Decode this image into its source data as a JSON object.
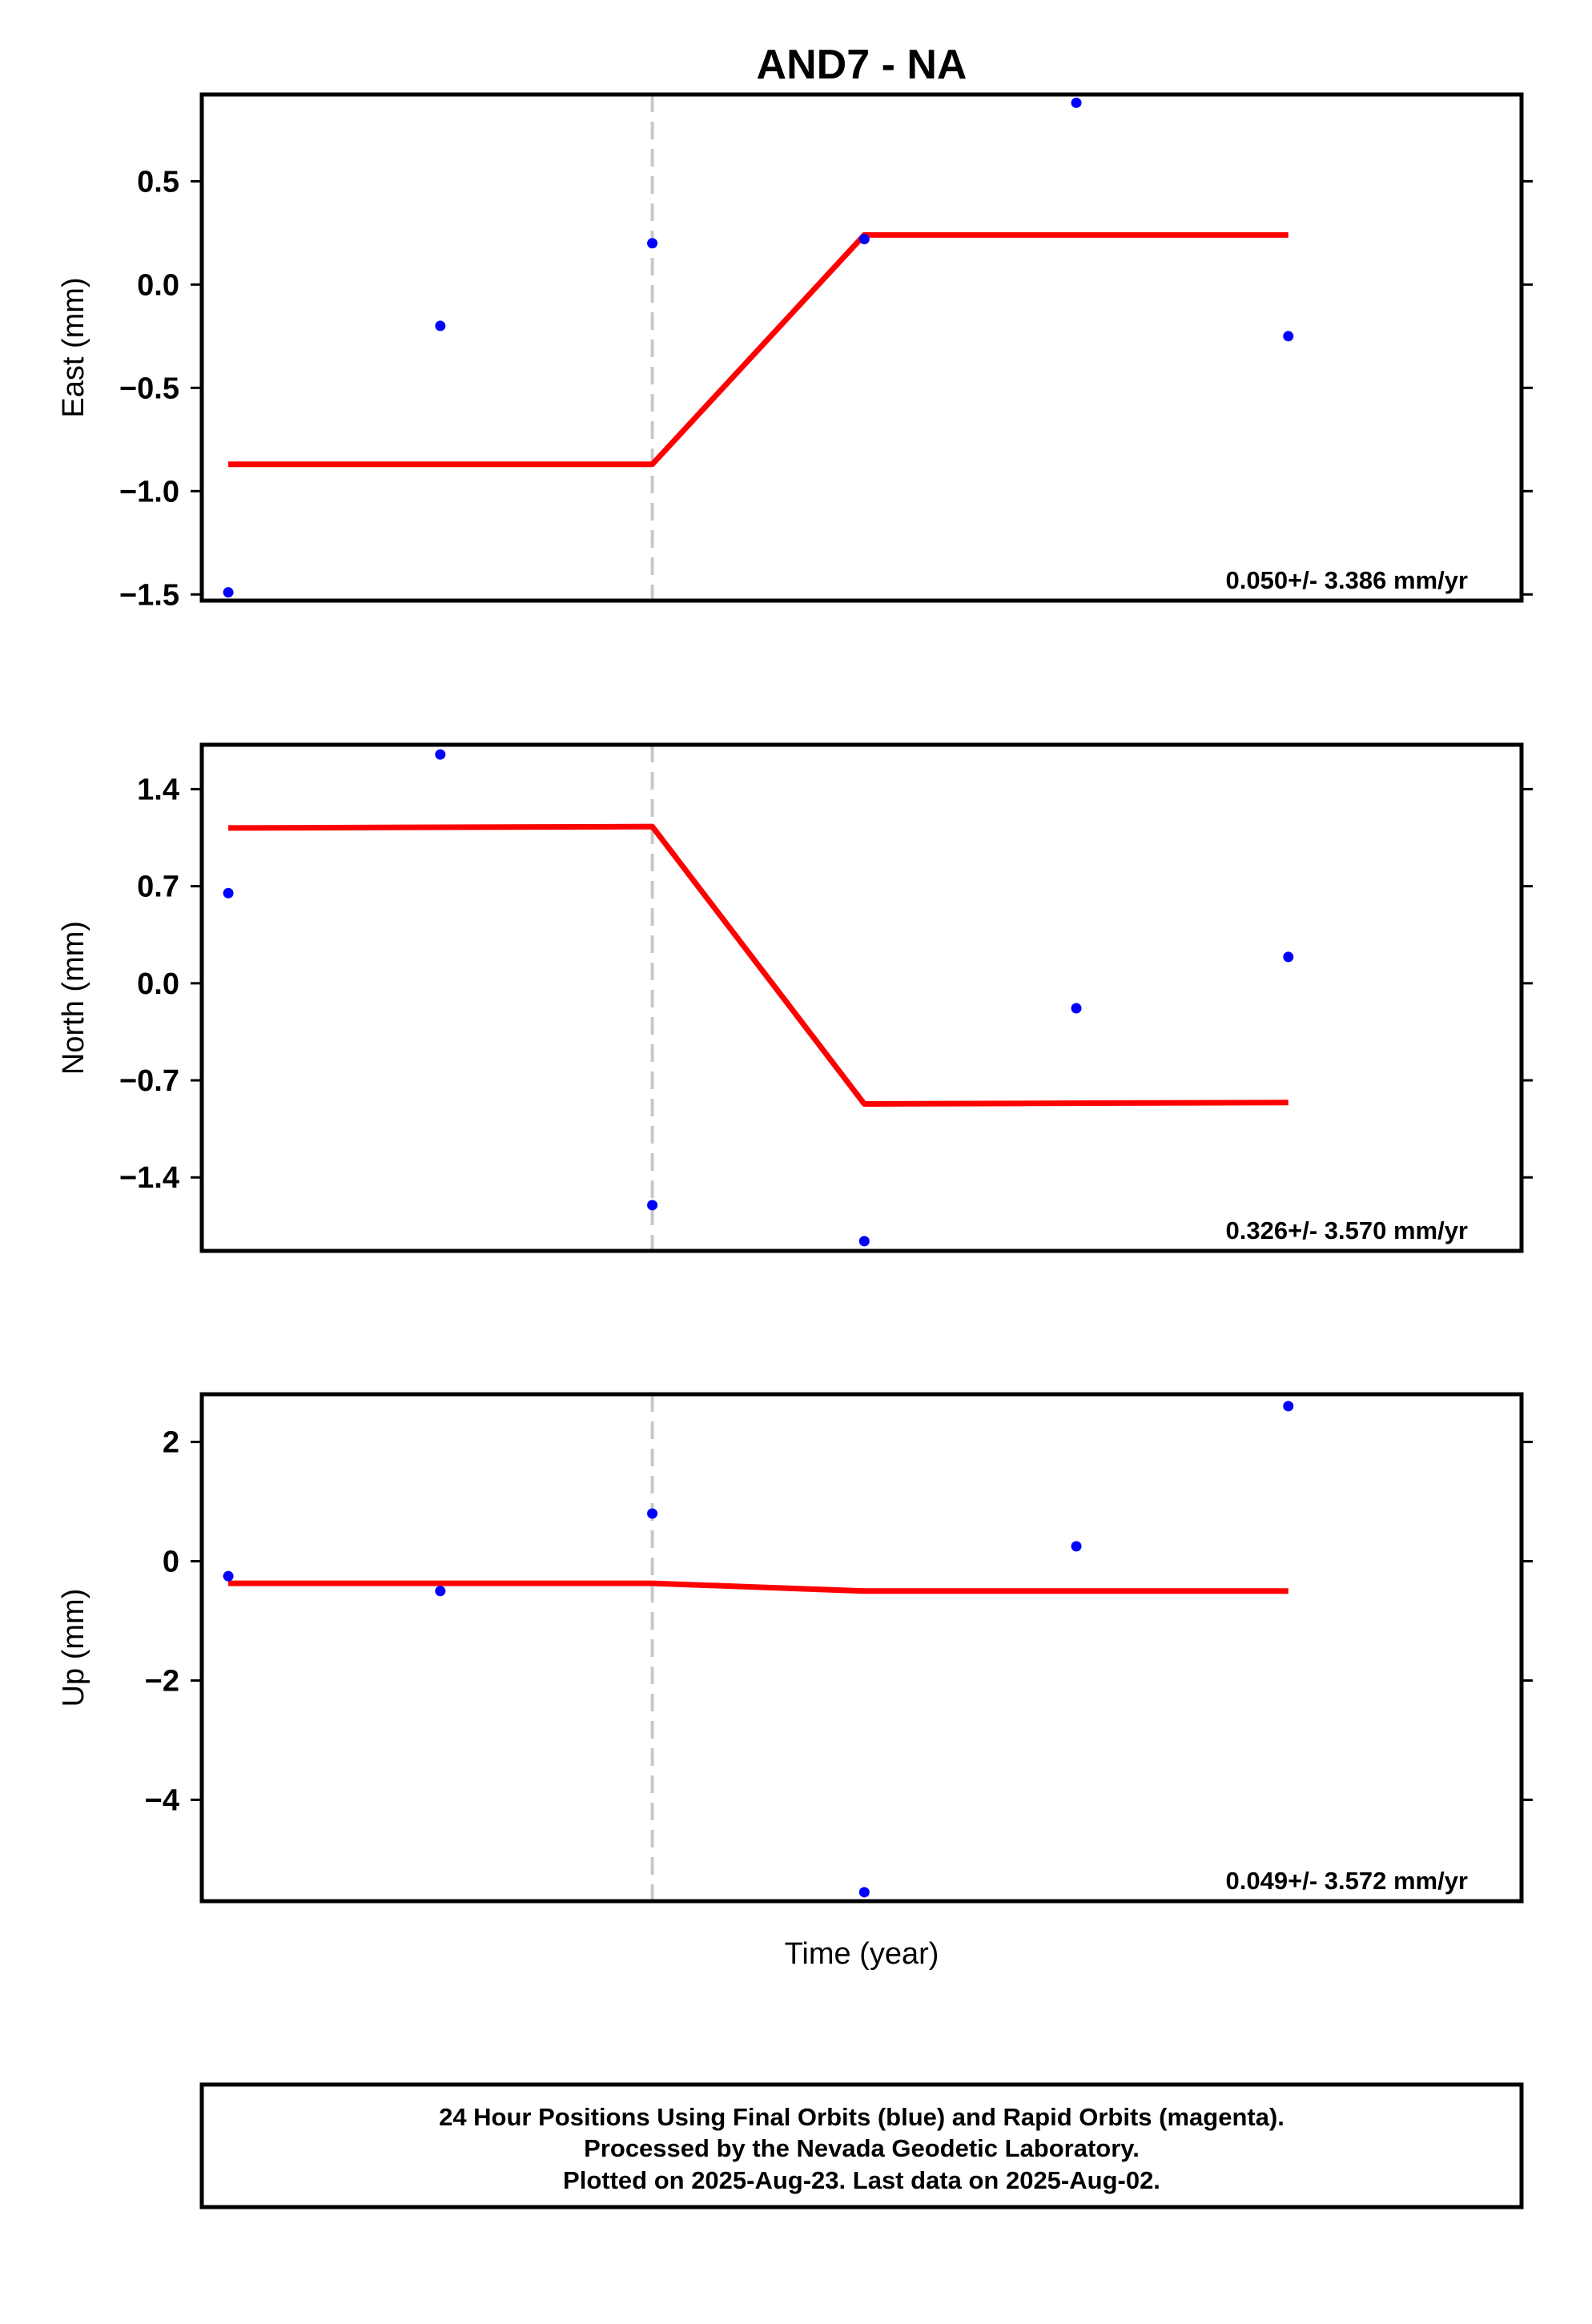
{
  "title": "AND7 - NA",
  "xlabel": "Time (year)",
  "footer": [
    "24 Hour Positions Using Final Orbits (blue) and Rapid Orbits (magenta).",
    "Processed by the Nevada Geodetic Laboratory.",
    "Plotted on 2025-Aug-23. Last data on 2025-Aug-02."
  ],
  "colors": {
    "points": "#0000ff",
    "model": "#ff0000",
    "break_line": "#c8c8c8"
  },
  "chart_data": [
    {
      "type": "scatter",
      "title": "AND7 - NA",
      "ylabel": "East (mm)",
      "rate": "0.050+/- 3.386 mm/yr",
      "ylim": [
        -1.53,
        0.92
      ],
      "yticks": [
        0.5,
        0.0,
        -0.5,
        -1.0,
        -1.5
      ],
      "ytick_labels": [
        "0.5",
        "0.0",
        "−0.5",
        "−1.0",
        "−1.5"
      ],
      "series": [
        {
          "x": [
            1,
            2,
            3,
            4,
            5,
            6
          ],
          "values": [
            -1.49,
            -0.2,
            0.2,
            0.22,
            0.88,
            -0.25
          ]
        },
        {
          "x": [
            1,
            3,
            4,
            6
          ],
          "values": [
            -0.87,
            -0.87,
            0.24,
            0.24
          ]
        }
      ]
    },
    {
      "type": "scatter",
      "ylabel": "North (mm)",
      "rate": "0.326+/- 3.570 mm/yr",
      "ylim": [
        -1.93,
        1.72
      ],
      "yticks": [
        1.4,
        0.7,
        0.0,
        -0.7,
        -1.4
      ],
      "ytick_labels": [
        "1.4",
        "0.7",
        "0.0",
        "−0.7",
        "−1.4"
      ],
      "series": [
        {
          "x": [
            1,
            2,
            3,
            4,
            5,
            6
          ],
          "values": [
            0.65,
            1.65,
            -1.6,
            -1.86,
            -0.18,
            0.19
          ]
        },
        {
          "x": [
            1,
            3,
            4,
            6
          ],
          "values": [
            1.12,
            1.13,
            -0.87,
            -0.86
          ]
        }
      ]
    },
    {
      "type": "scatter",
      "ylabel": "Up (mm)",
      "rate": "0.049+/- 3.572 mm/yr",
      "ylim": [
        -5.7,
        2.8
      ],
      "yticks": [
        2,
        0,
        -2,
        -4
      ],
      "ytick_labels": [
        "2",
        "0",
        "−2",
        "−4"
      ],
      "series": [
        {
          "x": [
            1,
            2,
            3,
            4,
            5,
            6
          ],
          "values": [
            -0.25,
            -0.5,
            0.8,
            -5.55,
            0.25,
            2.6
          ]
        },
        {
          "x": [
            1,
            3,
            4,
            6
          ],
          "values": [
            -0.37,
            -0.37,
            -0.5,
            -0.5
          ]
        }
      ]
    }
  ]
}
